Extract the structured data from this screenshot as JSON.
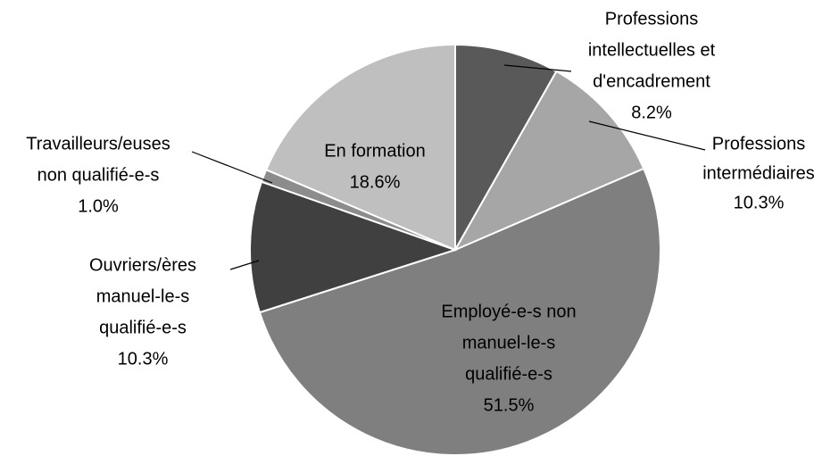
{
  "chart_data": {
    "type": "pie",
    "categories": [
      [
        "Professions",
        "intellectuelles et",
        "d'encadrement"
      ],
      [
        "Professions",
        "intermédiaires"
      ],
      [
        "Employé-e-s non",
        "manuel-le-s",
        "qualifié-e-s"
      ],
      [
        "Ouvriers/ères",
        "manuel-le-s",
        "qualifié-e-s"
      ],
      [
        "Travailleurs/euses",
        "non qualifié-e-s"
      ],
      [
        "En formation"
      ]
    ],
    "values": [
      8.2,
      10.3,
      51.5,
      10.3,
      1.0,
      18.6
    ],
    "value_labels": [
      "8.2%",
      "10.3%",
      "51.5%",
      "10.3%",
      "1.0%",
      "18.6%"
    ],
    "colors": [
      "#595959",
      "#a6a6a6",
      "#7f7f7f",
      "#404040",
      "#8c8c8c",
      "#bfbfbf"
    ]
  }
}
